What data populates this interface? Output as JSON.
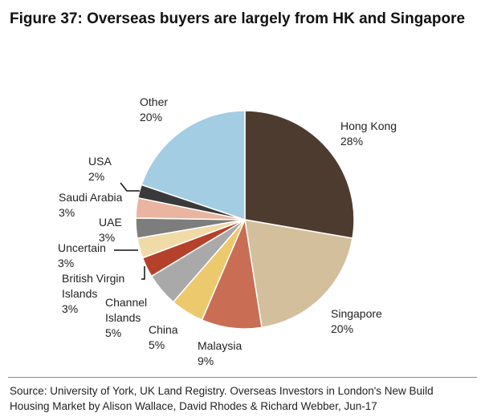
{
  "title": "Figure 37: Overseas buyers are largely from HK and Singapore",
  "source": "Source:  University of York, UK Land Registry. Overseas Investors in London's New Build Housing Market by Alison Wallace, David Rhodes & Richard Webber, Jun-17",
  "chart_data": {
    "type": "pie",
    "title": "Figure 37: Overseas buyers are largely from HK and Singapore",
    "slices": [
      {
        "name": "Hong Kong",
        "label": "Hong Kong",
        "pct_label": "28%",
        "value": 28,
        "color": "#4e3b2f"
      },
      {
        "name": "Singapore",
        "label": "Singapore",
        "pct_label": "20%",
        "value": 20,
        "color": "#d3bf9c"
      },
      {
        "name": "Malaysia",
        "label": "Malaysia",
        "pct_label": "9%",
        "value": 9,
        "color": "#c96e55"
      },
      {
        "name": "China",
        "label": "China",
        "pct_label": "5%",
        "value": 5,
        "color": "#edc96e"
      },
      {
        "name": "Channel Islands",
        "label": "Channel Islands",
        "pct_label": "5%",
        "value": 5,
        "color": "#a9a9a9"
      },
      {
        "name": "British Virgin Islands",
        "label": "British Virgin Islands",
        "pct_label": "3%",
        "value": 3,
        "color": "#b5412b"
      },
      {
        "name": "Uncertain",
        "label": "Uncertain",
        "pct_label": "3%",
        "value": 3,
        "color": "#f0dba8"
      },
      {
        "name": "UAE",
        "label": "UAE",
        "pct_label": "3%",
        "value": 3,
        "color": "#7d7d7d"
      },
      {
        "name": "Saudi Arabia",
        "label": "Saudi Arabia",
        "pct_label": "3%",
        "value": 3,
        "color": "#e9b4a0"
      },
      {
        "name": "USA",
        "label": "USA",
        "pct_label": "2%",
        "value": 2,
        "color": "#3a3a3a"
      },
      {
        "name": "Other",
        "label": "Other",
        "pct_label": "20%",
        "value": 20,
        "color": "#a3cde3"
      }
    ]
  }
}
